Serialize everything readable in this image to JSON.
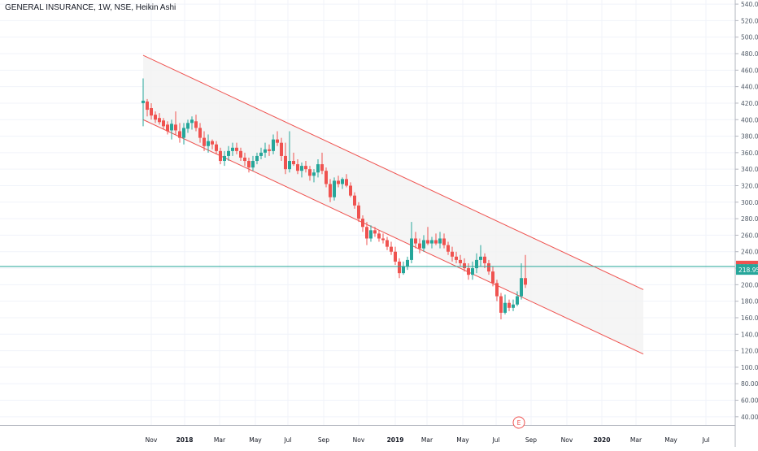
{
  "header": {
    "symbol_title": "GENERAL INSURANCE, 1W, NSE, Heikin Ashi"
  },
  "colors": {
    "up": "#26a69a",
    "down": "#ef5350",
    "channel_line": "#ef5350",
    "channel_fill": "#f3f3f3",
    "grid": "#f0f3fa",
    "axis_text": "#4f5966",
    "horizontal_line": "#26a69a",
    "price_label_bg": "#ef5350",
    "last_label_bg": "#26a69a"
  },
  "price_labels": {
    "current": "222.15",
    "last": "218.95"
  },
  "earnings_marker": "E",
  "chart_data": {
    "type": "candlestick",
    "title": "GENERAL INSURANCE, 1W, NSE, Heikin Ashi",
    "ylim": [
      30,
      545
    ],
    "y_ticks": [
      40,
      60,
      80,
      100,
      120,
      140,
      160,
      180,
      200,
      220,
      240,
      260,
      280,
      300,
      320,
      340,
      360,
      380,
      400,
      420,
      440,
      460,
      480,
      500,
      520,
      540
    ],
    "x_tick_labels": [
      "Nov",
      "2018",
      "Mar",
      "May",
      "Jul",
      "Sep",
      "Nov",
      "2019",
      "Mar",
      "May",
      "Jul",
      "Sep",
      "Nov",
      "2020",
      "Mar",
      "May",
      "Jul"
    ],
    "grid": true,
    "horizontal_line": 222.15,
    "channel": {
      "upper": [
        [
          0,
          478
        ],
        [
          123,
          194
        ]
      ],
      "lower": [
        [
          0,
          400
        ],
        [
          123,
          116
        ]
      ]
    },
    "candles": [
      {
        "o": 420,
        "h": 450,
        "l": 392,
        "c": 423
      },
      {
        "o": 422,
        "h": 425,
        "l": 404,
        "c": 412
      },
      {
        "o": 414,
        "h": 420,
        "l": 400,
        "c": 405
      },
      {
        "o": 406,
        "h": 410,
        "l": 396,
        "c": 400
      },
      {
        "o": 402,
        "h": 408,
        "l": 394,
        "c": 397
      },
      {
        "o": 399,
        "h": 402,
        "l": 388,
        "c": 392
      },
      {
        "o": 394,
        "h": 398,
        "l": 382,
        "c": 386
      },
      {
        "o": 387,
        "h": 400,
        "l": 376,
        "c": 395
      },
      {
        "o": 394,
        "h": 410,
        "l": 382,
        "c": 387
      },
      {
        "o": 386,
        "h": 396,
        "l": 372,
        "c": 378
      },
      {
        "o": 378,
        "h": 396,
        "l": 370,
        "c": 390
      },
      {
        "o": 389,
        "h": 400,
        "l": 384,
        "c": 396
      },
      {
        "o": 396,
        "h": 404,
        "l": 388,
        "c": 400
      },
      {
        "o": 398,
        "h": 406,
        "l": 386,
        "c": 390
      },
      {
        "o": 390,
        "h": 396,
        "l": 372,
        "c": 378
      },
      {
        "o": 378,
        "h": 386,
        "l": 362,
        "c": 368
      },
      {
        "o": 368,
        "h": 382,
        "l": 360,
        "c": 374
      },
      {
        "o": 374,
        "h": 376,
        "l": 364,
        "c": 370
      },
      {
        "o": 370,
        "h": 374,
        "l": 358,
        "c": 362
      },
      {
        "o": 362,
        "h": 366,
        "l": 346,
        "c": 350
      },
      {
        "o": 350,
        "h": 362,
        "l": 344,
        "c": 356
      },
      {
        "o": 356,
        "h": 368,
        "l": 350,
        "c": 362
      },
      {
        "o": 362,
        "h": 372,
        "l": 356,
        "c": 366
      },
      {
        "o": 366,
        "h": 372,
        "l": 358,
        "c": 362
      },
      {
        "o": 362,
        "h": 366,
        "l": 350,
        "c": 354
      },
      {
        "o": 354,
        "h": 360,
        "l": 344,
        "c": 350
      },
      {
        "o": 350,
        "h": 354,
        "l": 336,
        "c": 342
      },
      {
        "o": 342,
        "h": 356,
        "l": 338,
        "c": 350
      },
      {
        "o": 350,
        "h": 360,
        "l": 346,
        "c": 356
      },
      {
        "o": 356,
        "h": 366,
        "l": 352,
        "c": 360
      },
      {
        "o": 360,
        "h": 372,
        "l": 354,
        "c": 364
      },
      {
        "o": 364,
        "h": 370,
        "l": 356,
        "c": 362
      },
      {
        "o": 362,
        "h": 382,
        "l": 358,
        "c": 376
      },
      {
        "o": 376,
        "h": 386,
        "l": 368,
        "c": 372
      },
      {
        "o": 372,
        "h": 378,
        "l": 350,
        "c": 356
      },
      {
        "o": 356,
        "h": 372,
        "l": 334,
        "c": 340
      },
      {
        "o": 340,
        "h": 386,
        "l": 336,
        "c": 350
      },
      {
        "o": 350,
        "h": 360,
        "l": 344,
        "c": 346
      },
      {
        "o": 346,
        "h": 352,
        "l": 334,
        "c": 338
      },
      {
        "o": 338,
        "h": 348,
        "l": 330,
        "c": 344
      },
      {
        "o": 344,
        "h": 350,
        "l": 336,
        "c": 340
      },
      {
        "o": 340,
        "h": 344,
        "l": 326,
        "c": 332
      },
      {
        "o": 332,
        "h": 340,
        "l": 324,
        "c": 336
      },
      {
        "o": 336,
        "h": 352,
        "l": 330,
        "c": 346
      },
      {
        "o": 346,
        "h": 360,
        "l": 334,
        "c": 338
      },
      {
        "o": 338,
        "h": 342,
        "l": 318,
        "c": 322
      },
      {
        "o": 322,
        "h": 328,
        "l": 300,
        "c": 306
      },
      {
        "o": 306,
        "h": 330,
        "l": 302,
        "c": 326
      },
      {
        "o": 326,
        "h": 332,
        "l": 318,
        "c": 322
      },
      {
        "o": 322,
        "h": 330,
        "l": 316,
        "c": 328
      },
      {
        "o": 328,
        "h": 334,
        "l": 318,
        "c": 320
      },
      {
        "o": 320,
        "h": 324,
        "l": 306,
        "c": 308
      },
      {
        "o": 308,
        "h": 312,
        "l": 292,
        "c": 296
      },
      {
        "o": 296,
        "h": 300,
        "l": 276,
        "c": 280
      },
      {
        "o": 280,
        "h": 284,
        "l": 264,
        "c": 270
      },
      {
        "o": 270,
        "h": 276,
        "l": 248,
        "c": 256
      },
      {
        "o": 256,
        "h": 272,
        "l": 252,
        "c": 266
      },
      {
        "o": 266,
        "h": 270,
        "l": 258,
        "c": 262
      },
      {
        "o": 262,
        "h": 266,
        "l": 252,
        "c": 256
      },
      {
        "o": 256,
        "h": 262,
        "l": 250,
        "c": 254
      },
      {
        "o": 254,
        "h": 258,
        "l": 242,
        "c": 246
      },
      {
        "o": 246,
        "h": 252,
        "l": 236,
        "c": 240
      },
      {
        "o": 240,
        "h": 246,
        "l": 224,
        "c": 228
      },
      {
        "o": 228,
        "h": 232,
        "l": 208,
        "c": 214
      },
      {
        "o": 214,
        "h": 228,
        "l": 212,
        "c": 222
      },
      {
        "o": 222,
        "h": 234,
        "l": 218,
        "c": 230
      },
      {
        "o": 230,
        "h": 276,
        "l": 226,
        "c": 256
      },
      {
        "o": 256,
        "h": 264,
        "l": 244,
        "c": 250
      },
      {
        "o": 250,
        "h": 256,
        "l": 238,
        "c": 244
      },
      {
        "o": 244,
        "h": 260,
        "l": 240,
        "c": 254
      },
      {
        "o": 254,
        "h": 270,
        "l": 248,
        "c": 250
      },
      {
        "o": 250,
        "h": 258,
        "l": 244,
        "c": 254
      },
      {
        "o": 254,
        "h": 262,
        "l": 248,
        "c": 250
      },
      {
        "o": 250,
        "h": 264,
        "l": 244,
        "c": 256
      },
      {
        "o": 256,
        "h": 262,
        "l": 244,
        "c": 248
      },
      {
        "o": 248,
        "h": 252,
        "l": 236,
        "c": 240
      },
      {
        "o": 240,
        "h": 246,
        "l": 228,
        "c": 234
      },
      {
        "o": 234,
        "h": 240,
        "l": 226,
        "c": 230
      },
      {
        "o": 230,
        "h": 236,
        "l": 222,
        "c": 226
      },
      {
        "o": 226,
        "h": 232,
        "l": 216,
        "c": 220
      },
      {
        "o": 220,
        "h": 226,
        "l": 206,
        "c": 212
      },
      {
        "o": 212,
        "h": 228,
        "l": 206,
        "c": 220
      },
      {
        "o": 220,
        "h": 238,
        "l": 214,
        "c": 230
      },
      {
        "o": 230,
        "h": 248,
        "l": 222,
        "c": 234
      },
      {
        "o": 234,
        "h": 238,
        "l": 220,
        "c": 226
      },
      {
        "o": 226,
        "h": 230,
        "l": 212,
        "c": 216
      },
      {
        "o": 216,
        "h": 222,
        "l": 198,
        "c": 202
      },
      {
        "o": 202,
        "h": 206,
        "l": 180,
        "c": 186
      },
      {
        "o": 186,
        "h": 190,
        "l": 158,
        "c": 166
      },
      {
        "o": 166,
        "h": 188,
        "l": 164,
        "c": 178
      },
      {
        "o": 178,
        "h": 182,
        "l": 168,
        "c": 172
      },
      {
        "o": 172,
        "h": 182,
        "l": 168,
        "c": 176
      },
      {
        "o": 176,
        "h": 192,
        "l": 174,
        "c": 186
      },
      {
        "o": 186,
        "h": 226,
        "l": 182,
        "c": 208
      },
      {
        "o": 208,
        "h": 236,
        "l": 196,
        "c": 200
      }
    ]
  }
}
